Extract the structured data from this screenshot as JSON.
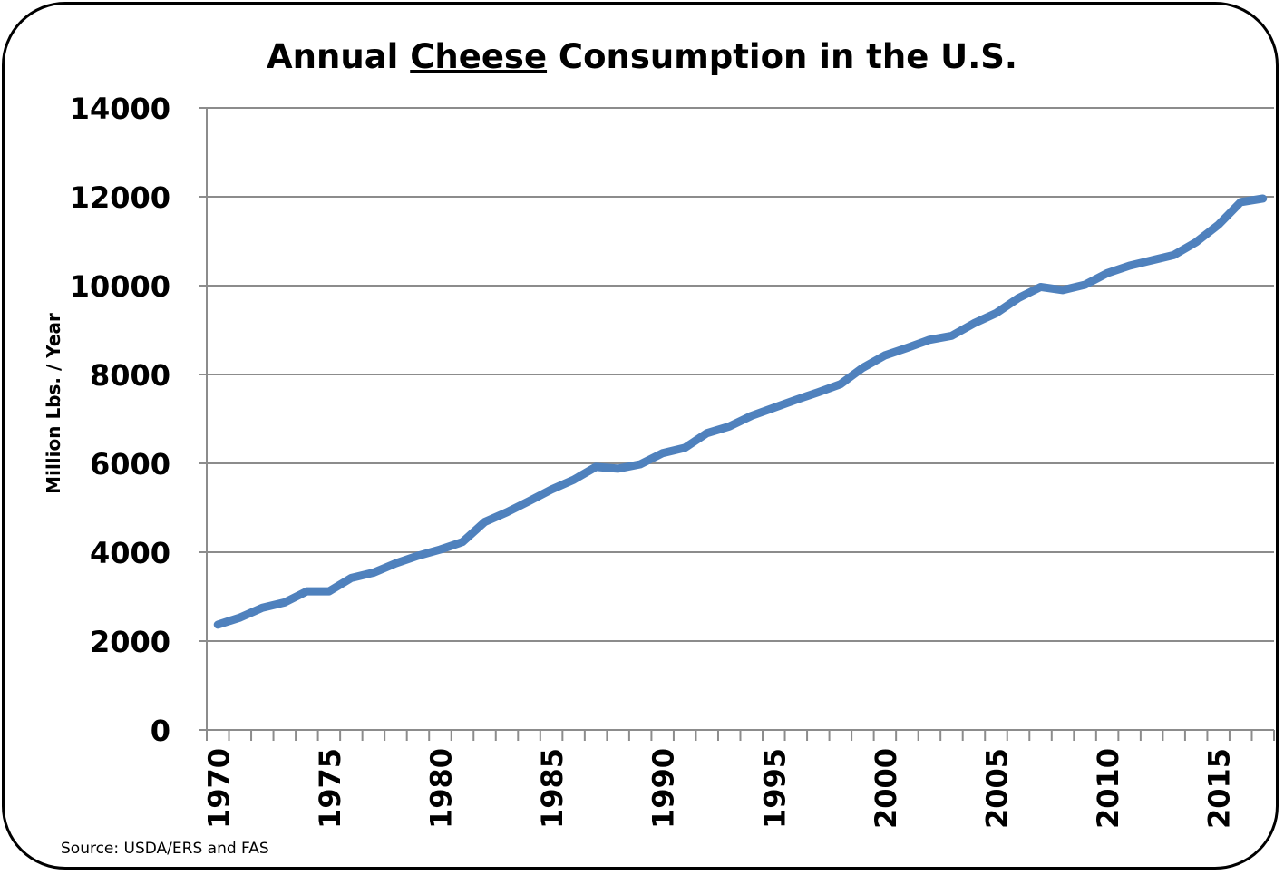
{
  "chart_data": {
    "type": "line",
    "title_parts": [
      "Annual ",
      "Cheese",
      " Consumption in the U.S."
    ],
    "title": "Annual Cheese Consumption in the U.S.",
    "xlabel": "",
    "ylabel": "Million Lbs. / Year",
    "source": "Source: USDA/ERS and FAS",
    "ylim": [
      0,
      14000
    ],
    "yticks": [
      0,
      2000,
      4000,
      6000,
      8000,
      10000,
      12000,
      14000
    ],
    "xtick_labels": [
      "1970",
      "1975",
      "1980",
      "1985",
      "1990",
      "1995",
      "2000",
      "2005",
      "2010",
      "2015"
    ],
    "grid": true,
    "line_color": "#4F81BD",
    "x": [
      1970,
      1971,
      1972,
      1973,
      1974,
      1975,
      1976,
      1977,
      1978,
      1979,
      1980,
      1981,
      1982,
      1983,
      1984,
      1985,
      1986,
      1987,
      1988,
      1989,
      1990,
      1991,
      1992,
      1993,
      1994,
      1995,
      1996,
      1997,
      1998,
      1999,
      2000,
      2001,
      2002,
      2003,
      2004,
      2005,
      2006,
      2007,
      2008,
      2009,
      2010,
      2011,
      2012,
      2013,
      2014,
      2015,
      2016,
      2017
    ],
    "y": [
      2370,
      2530,
      2750,
      2870,
      3120,
      3120,
      3420,
      3540,
      3750,
      3920,
      4060,
      4230,
      4680,
      4900,
      5150,
      5410,
      5630,
      5920,
      5880,
      5980,
      6230,
      6350,
      6680,
      6830,
      7070,
      7250,
      7430,
      7600,
      7780,
      8150,
      8430,
      8600,
      8780,
      8870,
      9150,
      9380,
      9720,
      9970,
      9900,
      10020,
      10280,
      10450,
      10570,
      10690,
      10980,
      11370,
      11880,
      11960
    ]
  }
}
